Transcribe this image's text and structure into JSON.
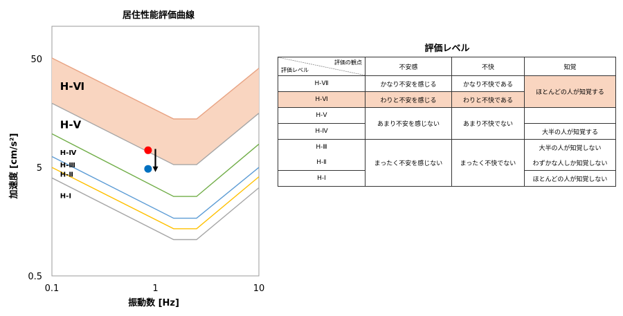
{
  "chart_data": {
    "type": "line",
    "title": "居住性能評価曲線",
    "xlabel": "振動数 [Hz]",
    "ylabel": "加速度 [cm/s²]",
    "xscale": "log",
    "yscale": "log",
    "xlim": [
      0.1,
      10
    ],
    "ylim": [
      0.5,
      100
    ],
    "xticks": [
      "0.1",
      "1",
      "10"
    ],
    "yticks": [
      "0.5",
      "5",
      "50"
    ],
    "series": [
      {
        "name": "H-Ⅶ",
        "color": "#e8a383",
        "x": [
          0.1,
          1.5,
          2.5,
          10
        ],
        "y": [
          51,
          14,
          14,
          41
        ]
      },
      {
        "name": "H-Ⅵ",
        "color": "#a6a6a6",
        "x": [
          0.1,
          1.5,
          2.5,
          10
        ],
        "y": [
          19.5,
          5.3,
          5.3,
          15.8
        ]
      },
      {
        "name": "H-Ⅴ",
        "color": "#70ad47",
        "x": [
          0.1,
          1.5,
          2.5,
          10
        ],
        "y": [
          10.2,
          2.7,
          2.7,
          8.2
        ]
      },
      {
        "name": "H-Ⅳ",
        "color": "#5b9bd5",
        "x": [
          0.1,
          1.5,
          2.5,
          10
        ],
        "y": [
          6.3,
          1.7,
          1.7,
          5.0
        ]
      },
      {
        "name": "H-Ⅲ",
        "color": "#ffc000",
        "x": [
          0.1,
          1.5,
          2.5,
          10
        ],
        "y": [
          5.0,
          1.36,
          1.36,
          4.1
        ]
      },
      {
        "name": "H-Ⅱ",
        "color": "#a6a6a6",
        "x": [
          0.1,
          1.5,
          2.5,
          10
        ],
        "y": [
          4.0,
          1.08,
          1.08,
          3.25
        ]
      }
    ],
    "band": {
      "between": [
        "H-Ⅶ",
        "H-Ⅵ"
      ],
      "color": "#f9d5c0"
    },
    "points": [
      {
        "x": 0.85,
        "y": 7.2,
        "color": "#ff0000"
      },
      {
        "x": 0.85,
        "y": 4.85,
        "color": "#0070c0"
      }
    ],
    "arrow": {
      "x": 1.0,
      "y_from": 7.4,
      "y_to": 4.6,
      "color": "#000000"
    },
    "region_labels": [
      {
        "text": "H-Ⅵ",
        "x": 0.12,
        "y": 26,
        "size": "large"
      },
      {
        "text": "H-Ⅴ",
        "x": 0.12,
        "y": 11.5,
        "size": "large"
      },
      {
        "text": "H-Ⅳ",
        "x": 0.12,
        "y": 6.5,
        "size": "small"
      },
      {
        "text": "H-Ⅲ",
        "x": 0.12,
        "y": 5.0,
        "size": "small"
      },
      {
        "text": "H-Ⅱ",
        "x": 0.12,
        "y": 4.1,
        "size": "small"
      },
      {
        "text": "H-Ⅰ",
        "x": 0.12,
        "y": 2.6,
        "size": "small"
      }
    ]
  },
  "table": {
    "title": "評価レベル",
    "corner_top": "評価の観点",
    "corner_bottom": "評価レベル",
    "col_headers": [
      "不安感",
      "不快",
      "知覚"
    ],
    "levels": [
      "H-Ⅶ",
      "H-Ⅵ",
      "H-Ⅴ",
      "H-Ⅳ",
      "H-Ⅲ",
      "H-Ⅱ",
      "H-Ⅰ"
    ],
    "anxiety": [
      "かなり不安を感じる",
      "わりと不安を感じる",
      "あまり不安を感じない",
      "まったく不安を感じない"
    ],
    "discomfort": [
      "かなり不快である",
      "わりと不快である",
      "あまり不快でない",
      "まったく不快でない"
    ],
    "perception": [
      "ほとんどの人が知覚する",
      "大半の人が知覚する",
      "大半の人が知覚しない",
      "わずかな人しか知覚しない",
      "ほとんどの人が知覚しない"
    ],
    "highlight_color": "#f9d5c0"
  }
}
